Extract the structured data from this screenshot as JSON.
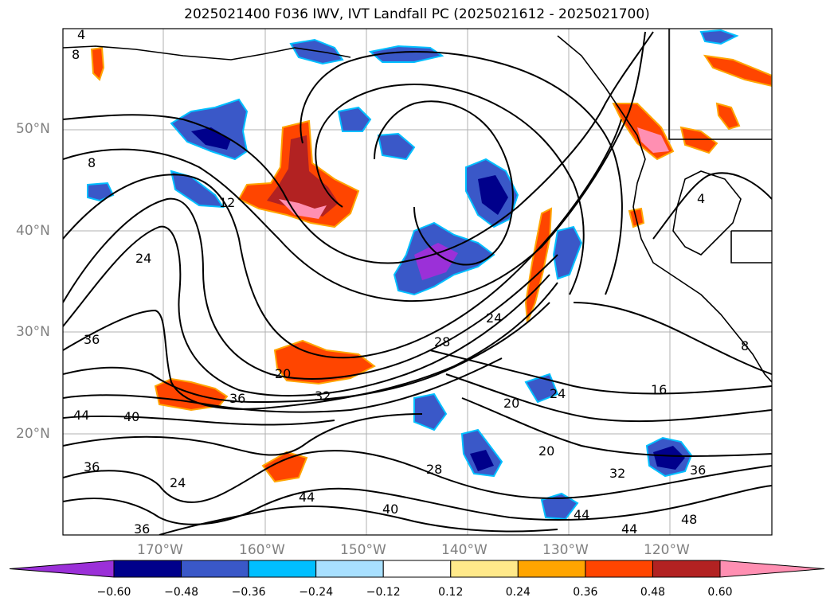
{
  "title": "2025021400 F036 IWV, IVT Landfall PC (2025021612 - 2025021700)",
  "lat_labels": [
    "50°N",
    "40°N",
    "30°N",
    "20°N"
  ],
  "lon_labels": [
    "170°W",
    "160°W",
    "150°W",
    "140°W",
    "130°W",
    "120°W"
  ],
  "colorbar": {
    "ticks": [
      "−0.60",
      "−0.48",
      "−0.36",
      "−0.24",
      "−0.12",
      "0.12",
      "0.24",
      "0.36",
      "0.48",
      "0.60"
    ],
    "colors": [
      "#9b30d8",
      "#00008b",
      "#3a58c8",
      "#00bfff",
      "#a8e0ff",
      "#ffffff",
      "#ffe98a",
      "#ffa500",
      "#ff4500",
      "#b22222",
      "#ff8fb2"
    ]
  },
  "contour_labels": [
    {
      "text": "4"
    },
    {
      "text": "8"
    },
    {
      "text": "8"
    },
    {
      "text": "12"
    },
    {
      "text": "24"
    },
    {
      "text": "36"
    },
    {
      "text": "44"
    },
    {
      "text": "40"
    },
    {
      "text": "36"
    },
    {
      "text": "24"
    },
    {
      "text": "20"
    },
    {
      "text": "36"
    },
    {
      "text": "32"
    },
    {
      "text": "28"
    },
    {
      "text": "24"
    },
    {
      "text": "20"
    },
    {
      "text": "24"
    },
    {
      "text": "16"
    },
    {
      "text": "20"
    },
    {
      "text": "28"
    },
    {
      "text": "44"
    },
    {
      "text": "40"
    },
    {
      "text": "36"
    },
    {
      "text": "32"
    },
    {
      "text": "36"
    },
    {
      "text": "44"
    },
    {
      "text": "48"
    },
    {
      "text": "44"
    },
    {
      "text": "4"
    },
    {
      "text": "8"
    }
  ]
}
